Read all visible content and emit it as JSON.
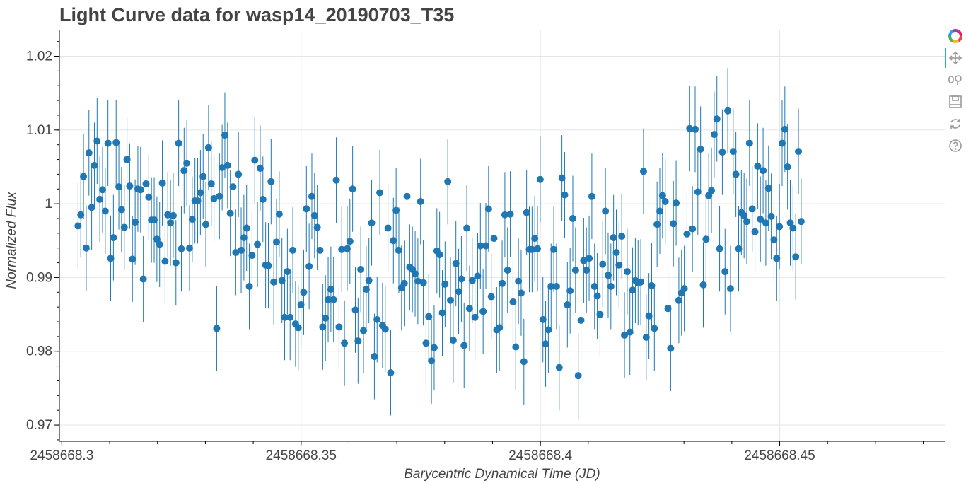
{
  "page": {
    "title": "Light Curve data for wasp14_20190703_T35"
  },
  "toolbar": {
    "tools": [
      {
        "name": "bokeh-logo",
        "icon": "bokeh-logo-icon"
      },
      {
        "name": "pan",
        "icon": "pan-icon",
        "active": true
      },
      {
        "name": "wheel-zoom",
        "icon": "wheel-zoom-icon"
      },
      {
        "name": "save",
        "icon": "save-icon"
      },
      {
        "name": "reset",
        "icon": "reset-icon"
      },
      {
        "name": "help",
        "icon": "help-icon"
      }
    ]
  },
  "chart_data": {
    "type": "scatter",
    "title": "Light Curve data for wasp14_20190703_T35",
    "xlabel": "Barycentric Dynamical Time (JD)",
    "ylabel": "Normalized Flux",
    "xlim": [
      2458668.2995,
      2458668.4845
    ],
    "ylim": [
      0.9678,
      1.0235
    ],
    "x_ticks": [
      2458668.3,
      2458668.35,
      2458668.4,
      2458668.45
    ],
    "x_tick_labels": [
      "2458668.3",
      "2458668.35",
      "2458668.4",
      "2458668.45"
    ],
    "y_ticks": [
      0.97,
      0.98,
      0.99,
      1.0,
      1.01,
      1.02
    ],
    "y_tick_labels": [
      "0.97",
      "0.98",
      "0.99",
      "1",
      "1.01",
      "1.02"
    ],
    "grid": true,
    "marker_color": "#1f77b4",
    "errorbar_color": "#1f77b4",
    "series": [
      {
        "x_start": 2458668.3034,
        "x_step": 0.000568,
        "error": 0.0058,
        "y": [
          0.997,
          0.9985,
          1.0037,
          0.994,
          1.0069,
          0.9995,
          1.0052,
          1.0085,
          1.0006,
          1.0019,
          0.999,
          1.0082,
          0.9926,
          0.9954,
          1.0083,
          1.0023,
          0.9992,
          0.9968,
          1.006,
          1.0024,
          0.9925,
          0.9975,
          1.002,
          1.0019,
          0.9898,
          1.0027,
          1.0009,
          0.9978,
          0.9978,
          0.9952,
          0.9945,
          1.0028,
          0.9922,
          0.9985,
          0.9974,
          0.9984,
          0.992,
          1.0082,
          0.9939,
          1.0045,
          1.0055,
          0.994,
          0.9979,
          1.0004,
          1.0004,
          1.0015,
          1.0037,
          0.9972,
          1.0076,
          1.0027,
          1.0007,
          0.9831,
          1.001,
          1.0049,
          1.0093,
          1.0052,
          0.9987,
          1.0023,
          0.9934,
          1.004,
          0.9937,
          0.9954,
          0.9967,
          0.9888,
          0.993,
          1.0059,
          0.9945,
          1.0048,
          1.0006,
          0.9917,
          0.9916,
          1.003,
          0.9894,
          0.9948,
          0.9986,
          0.9896,
          0.9846,
          0.9908,
          0.9846,
          0.9937,
          0.9837,
          0.9832,
          0.9863,
          0.988,
          0.9993,
          0.9915,
          1.001,
          0.9984,
          0.9968,
          0.9937,
          0.9833,
          0.9845,
          0.987,
          0.9884,
          0.987,
          1.0032,
          0.9833,
          0.9938,
          0.9811,
          0.9939,
          0.9949,
          1.002,
          0.9856,
          0.9814,
          0.9911,
          0.9828,
          0.9884,
          0.9896,
          0.9974,
          0.9793,
          0.9843,
          1.0015,
          0.9835,
          0.983,
          0.9967,
          0.9771,
          0.995,
          0.9991,
          0.9937,
          0.9886,
          0.9892,
          1.001,
          0.9914,
          0.9911,
          0.9905,
          0.9895,
          1.0003,
          0.9893,
          0.9811,
          0.9847,
          0.9787,
          0.9805,
          0.9936,
          0.9931,
          0.9852,
          0.9891,
          1.003,
          0.9869,
          0.9815,
          0.9919,
          0.9881,
          0.9898,
          0.9808,
          0.9967,
          0.9858,
          0.9896,
          0.9846,
          0.9902,
          0.9943,
          0.9854,
          0.9943,
          0.9993,
          0.9874,
          0.9953,
          0.9829,
          0.9832,
          0.9892,
          0.9985,
          0.991,
          0.9986,
          0.9867,
          0.9806,
          0.9895,
          0.9879,
          0.9786,
          0.9988,
          0.9938,
          0.9938,
          0.9953,
          0.9939,
          1.0033,
          0.9843,
          0.981,
          0.9829,
          0.9888,
          0.9938,
          0.9888,
          0.9778,
          1.0035,
          1.0012,
          0.9863,
          0.9882,
          0.998,
          0.991,
          0.9767,
          0.9842,
          0.9923,
          0.991,
          0.9926,
          1.001,
          0.9888,
          0.9875,
          0.985,
          0.9918,
          0.999,
          0.9903,
          0.9888,
          0.9954,
          0.9934,
          0.9917,
          0.9956,
          0.9822,
          0.9908,
          0.9826,
          0.9883,
          0.9896,
          0.9893,
          0.9894,
          1.0044,
          0.9819,
          0.9848,
          0.9889,
          0.9831,
          0.9972,
          0.999,
          1.0011,
          1.0003,
          0.9858,
          0.9804,
          0.9973,
          1.0001,
          0.9869,
          0.9879,
          0.9885,
          0.9959,
          1.0102,
          0.9966,
          1.0101,
          1.0016,
          1.0074,
          0.989,
          0.9952,
          1.0011,
          1.0018,
          1.0094,
          1.0115,
          0.9939,
          1.007,
          0.9908,
          1.0126,
          0.9885,
          1.0071,
          1.004,
          0.9939,
          0.9988,
          0.9984,
          0.9976,
          1.0082,
          0.9993,
          0.9962,
          1.0051,
          0.9979,
          1.0045,
          0.9974,
          1.0021,
          0.9983,
          0.9951,
          0.9926,
          0.9969,
          1.0082,
          1.0101,
          1.005,
          0.9974,
          0.9967,
          0.9928,
          1.0071,
          0.9976
        ]
      }
    ]
  }
}
